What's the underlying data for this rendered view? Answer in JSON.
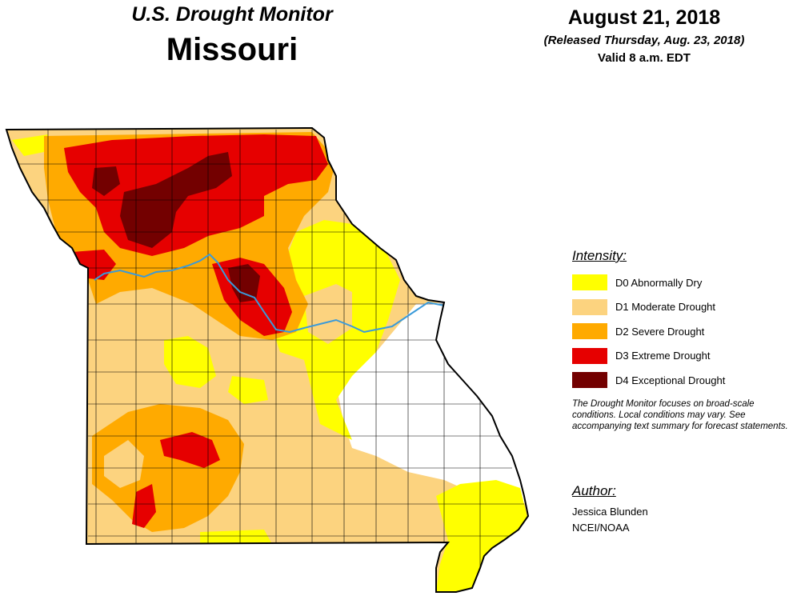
{
  "header": {
    "subtitle": "U.S. Drought Monitor",
    "state": "Missouri",
    "date": "August 21, 2018",
    "released": "(Released Thursday, Aug. 23, 2018)",
    "valid": "Valid 8 a.m. EDT"
  },
  "legend": {
    "title": "Intensity:",
    "items": [
      {
        "label": "D0 Abnormally Dry",
        "color": "#ffff00"
      },
      {
        "label": "D1 Moderate Drought",
        "color": "#fcd37f"
      },
      {
        "label": "D2 Severe Drought",
        "color": "#ffaa00"
      },
      {
        "label": "D3 Extreme Drought",
        "color": "#e60000"
      },
      {
        "label": "D4 Exceptional Drought",
        "color": "#730000"
      }
    ]
  },
  "note": "The Drought Monitor focuses on broad-scale conditions. Local conditions may vary. See accompanying text summary for forecast statements.",
  "author": {
    "heading": "Author:",
    "name": "Jessica Blunden",
    "org": "NCEI/NOAA"
  },
  "map": {
    "colors": {
      "none": "#ffffff",
      "d0": "#ffff00",
      "d1": "#fcd37f",
      "d2": "#ffaa00",
      "d3": "#e60000",
      "d4": "#730000",
      "river": "#3a9ad9",
      "border": "#000000"
    }
  }
}
